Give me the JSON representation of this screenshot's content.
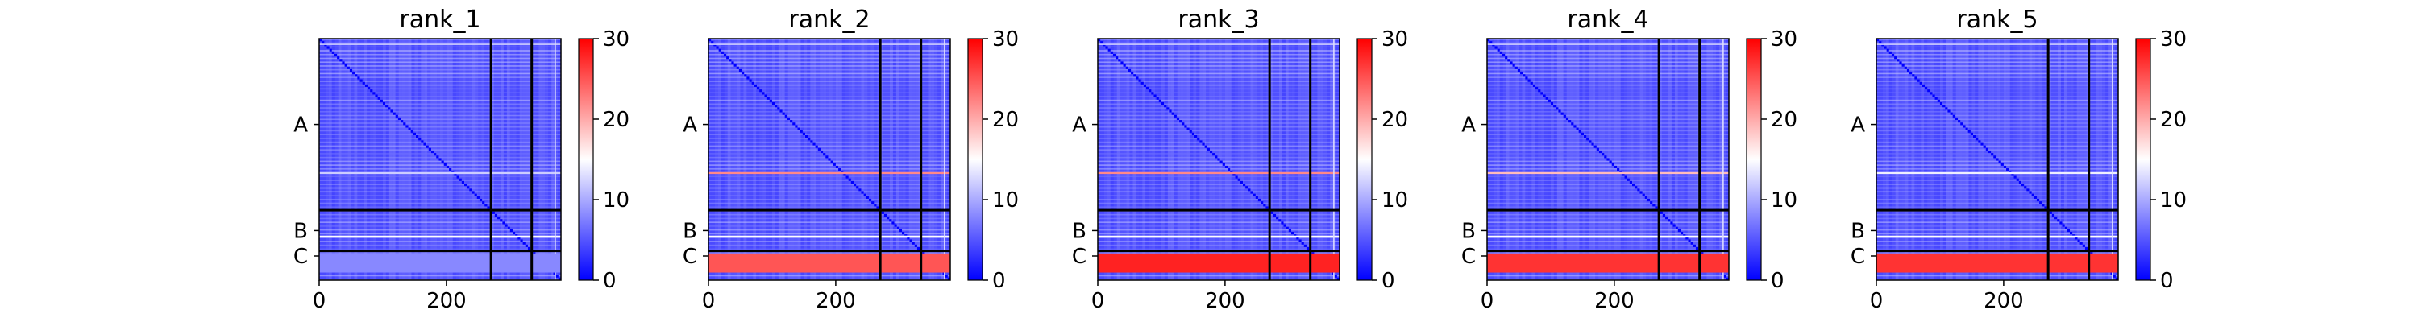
{
  "chart_data": [
    {
      "type": "heatmap",
      "title": "rank_1",
      "x_ticks": [
        "0",
        "200"
      ],
      "y_ticks": [
        "A",
        "B",
        "C"
      ],
      "colorbar": {
        "min": 0,
        "max": 30,
        "ticks": [
          "0",
          "10",
          "20",
          "30"
        ]
      },
      "x_range": [
        0,
        380
      ],
      "chain_breaks": [
        270,
        334,
        364
      ],
      "chain_lengths": {
        "A": 270,
        "B": 64,
        "C": 16
      },
      "pattern": {
        "base_error": 4,
        "row_stripes": [
          {
            "pos": 310,
            "value": 15
          },
          {
            "pos": 350,
            "value": 12
          },
          {
            "pos": 210,
            "value": 12
          }
        ],
        "chain_C_row": 8
      }
    },
    {
      "type": "heatmap",
      "title": "rank_2",
      "x_ticks": [
        "0",
        "200"
      ],
      "y_ticks": [
        "A",
        "B",
        "C"
      ],
      "colorbar": {
        "min": 0,
        "max": 30,
        "ticks": [
          "0",
          "10",
          "20",
          "30"
        ]
      },
      "x_range": [
        0,
        380
      ],
      "chain_breaks": [
        270,
        334,
        364
      ],
      "chain_lengths": {
        "A": 270,
        "B": 64,
        "C": 16
      },
      "pattern": {
        "base_error": 4,
        "row_stripes": [
          {
            "pos": 310,
            "value": 15
          },
          {
            "pos": 350,
            "value": 12
          },
          {
            "pos": 210,
            "value": 22
          }
        ],
        "chain_C_row": 25
      }
    },
    {
      "type": "heatmap",
      "title": "rank_3",
      "x_ticks": [
        "0",
        "200"
      ],
      "y_ticks": [
        "A",
        "B",
        "C"
      ],
      "colorbar": {
        "min": 0,
        "max": 30,
        "ticks": [
          "0",
          "10",
          "20",
          "30"
        ]
      },
      "x_range": [
        0,
        380
      ],
      "chain_breaks": [
        270,
        334,
        364
      ],
      "chain_lengths": {
        "A": 270,
        "B": 64,
        "C": 16
      },
      "pattern": {
        "base_error": 4,
        "row_stripes": [
          {
            "pos": 310,
            "value": 15
          },
          {
            "pos": 350,
            "value": 12
          },
          {
            "pos": 210,
            "value": 22
          }
        ],
        "chain_C_row": 28
      }
    },
    {
      "type": "heatmap",
      "title": "rank_4",
      "x_ticks": [
        "0",
        "200"
      ],
      "y_ticks": [
        "A",
        "B",
        "C"
      ],
      "colorbar": {
        "min": 0,
        "max": 30,
        "ticks": [
          "0",
          "10",
          "20",
          "30"
        ]
      },
      "x_range": [
        0,
        380
      ],
      "chain_breaks": [
        270,
        334,
        364
      ],
      "chain_lengths": {
        "A": 270,
        "B": 64,
        "C": 16
      },
      "pattern": {
        "base_error": 4,
        "row_stripes": [
          {
            "pos": 310,
            "value": 15
          },
          {
            "pos": 350,
            "value": 12
          },
          {
            "pos": 210,
            "value": 19
          }
        ],
        "chain_C_row": 27
      }
    },
    {
      "type": "heatmap",
      "title": "rank_5",
      "x_ticks": [
        "0",
        "200"
      ],
      "y_ticks": [
        "A",
        "B",
        "C"
      ],
      "colorbar": {
        "min": 0,
        "max": 30,
        "ticks": [
          "0",
          "10",
          "20",
          "30"
        ]
      },
      "x_range": [
        0,
        380
      ],
      "chain_breaks": [
        270,
        334,
        364
      ],
      "chain_lengths": {
        "A": 270,
        "B": 64,
        "C": 16
      },
      "pattern": {
        "base_error": 4,
        "row_stripes": [
          {
            "pos": 310,
            "value": 15
          },
          {
            "pos": 350,
            "value": 12
          },
          {
            "pos": 210,
            "value": 14
          }
        ],
        "chain_C_row": 27
      }
    }
  ]
}
